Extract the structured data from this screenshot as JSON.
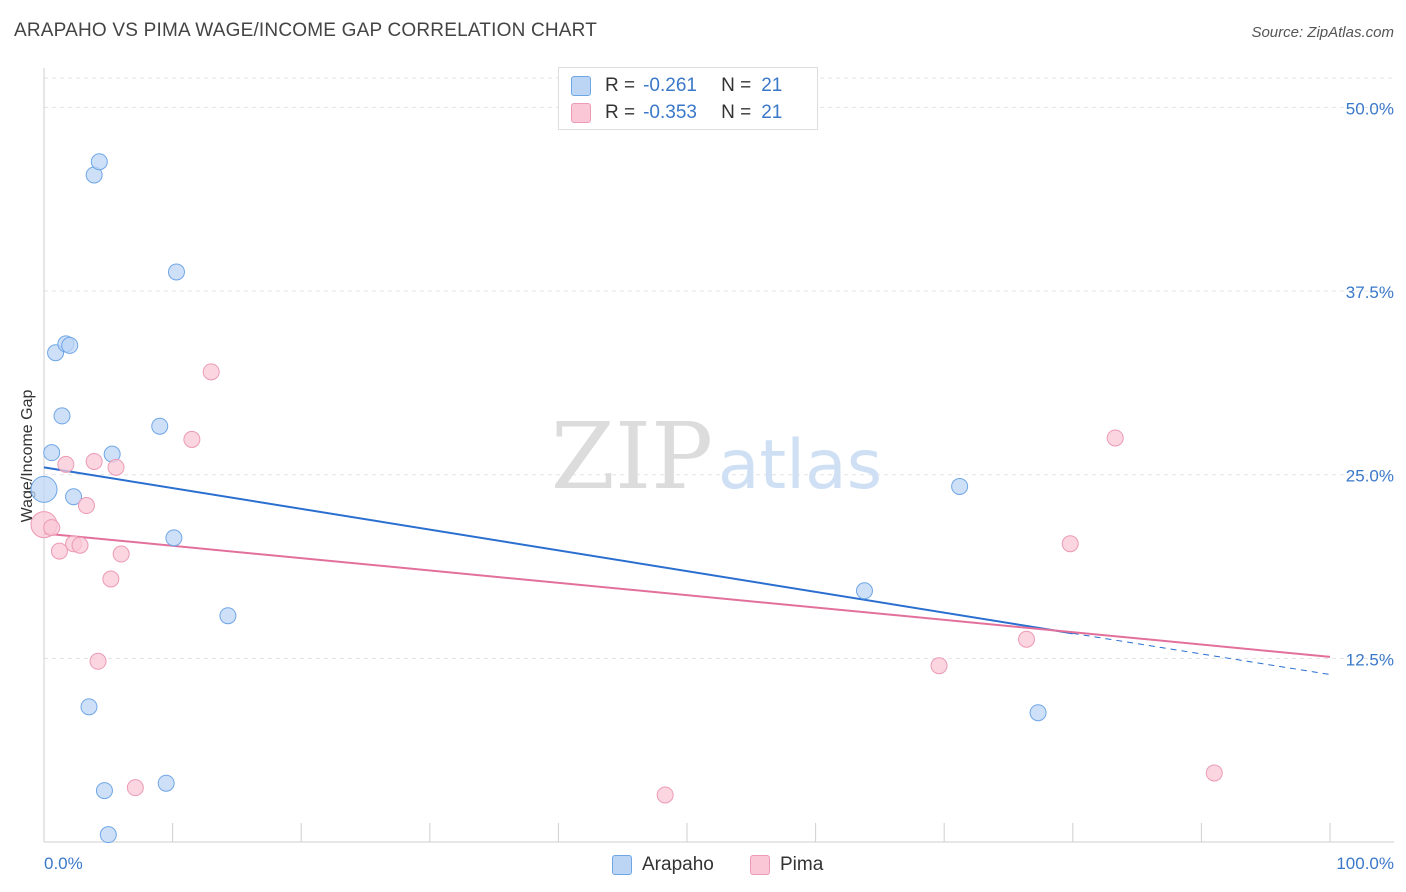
{
  "header": {
    "title": "ARAPAHO VS PIMA WAGE/INCOME GAP CORRELATION CHART",
    "source": "Source: ZipAtlas.com"
  },
  "watermark": {
    "zip": "ZIP",
    "atlas": "atlas"
  },
  "legend": {
    "rows": [
      {
        "series": "Arapaho",
        "r_label": "R =",
        "r_value": "-0.261",
        "n_label": "N =",
        "n_value": "21"
      },
      {
        "series": "Pima",
        "r_label": "R =",
        "r_value": "-0.353",
        "n_label": "N =",
        "n_value": "21"
      }
    ]
  },
  "chart_data": {
    "type": "scatter",
    "title": "ARAPAHO VS PIMA WAGE/INCOME GAP CORRELATION CHART",
    "xlabel": "",
    "ylabel": "Wage/Income Gap",
    "xlim": [
      0,
      100
    ],
    "ylim": [
      0,
      52
    ],
    "x_tick_labels": [
      "0.0%",
      "100.0%"
    ],
    "y_ticks": [
      12.5,
      25.0,
      37.5,
      50.0
    ],
    "y_tick_labels": [
      "12.5%",
      "25.0%",
      "37.5%",
      "50.0%"
    ],
    "grid": true,
    "legend_position": "top-center",
    "series": [
      {
        "name": "Arapaho",
        "color": "#6fa6e6",
        "fill": "#bcd5f5",
        "line_color": "#2a6fd0",
        "r": -0.261,
        "n": 21,
        "points": [
          {
            "x": 0.0,
            "y": 24.0,
            "big": true
          },
          {
            "x": 0.6,
            "y": 26.5
          },
          {
            "x": 0.9,
            "y": 33.3
          },
          {
            "x": 1.4,
            "y": 29.0
          },
          {
            "x": 1.7,
            "y": 33.9
          },
          {
            "x": 2.0,
            "y": 33.8
          },
          {
            "x": 2.3,
            "y": 23.5
          },
          {
            "x": 3.5,
            "y": 9.2
          },
          {
            "x": 3.9,
            "y": 45.4
          },
          {
            "x": 4.3,
            "y": 46.3
          },
          {
            "x": 4.7,
            "y": 3.5
          },
          {
            "x": 5.0,
            "y": 0.5
          },
          {
            "x": 5.3,
            "y": 26.4
          },
          {
            "x": 9.0,
            "y": 28.3
          },
          {
            "x": 9.5,
            "y": 4.0
          },
          {
            "x": 10.1,
            "y": 20.7
          },
          {
            "x": 10.3,
            "y": 38.8
          },
          {
            "x": 14.3,
            "y": 15.4
          },
          {
            "x": 63.8,
            "y": 17.1
          },
          {
            "x": 71.2,
            "y": 24.2
          },
          {
            "x": 77.3,
            "y": 8.8
          }
        ],
        "trend": {
          "x0": 0,
          "y0": 25.5,
          "x1": 80,
          "y1": 14.2,
          "dashed_to_x": 100,
          "dashed_to_y": 11.4
        }
      },
      {
        "name": "Pima",
        "color": "#ec9ab5",
        "fill": "#f9c7d6",
        "line_color": "#e2709a",
        "r": -0.353,
        "n": 21,
        "points": [
          {
            "x": 0.0,
            "y": 21.6,
            "big": true
          },
          {
            "x": 0.6,
            "y": 21.4
          },
          {
            "x": 1.2,
            "y": 19.8
          },
          {
            "x": 1.7,
            "y": 25.7
          },
          {
            "x": 2.3,
            "y": 20.3
          },
          {
            "x": 2.8,
            "y": 20.2
          },
          {
            "x": 3.3,
            "y": 22.9
          },
          {
            "x": 3.9,
            "y": 25.9
          },
          {
            "x": 4.2,
            "y": 12.3
          },
          {
            "x": 5.2,
            "y": 17.9
          },
          {
            "x": 5.6,
            "y": 25.5
          },
          {
            "x": 6.0,
            "y": 19.6
          },
          {
            "x": 7.1,
            "y": 3.7
          },
          {
            "x": 11.5,
            "y": 27.4
          },
          {
            "x": 13.0,
            "y": 32.0
          },
          {
            "x": 48.3,
            "y": 3.2
          },
          {
            "x": 69.6,
            "y": 12.0
          },
          {
            "x": 76.4,
            "y": 13.8
          },
          {
            "x": 79.8,
            "y": 20.3
          },
          {
            "x": 83.3,
            "y": 27.5
          },
          {
            "x": 91.0,
            "y": 4.7
          }
        ],
        "trend": {
          "x0": 0,
          "y0": 21.0,
          "x1": 100,
          "y1": 12.6
        }
      }
    ]
  }
}
